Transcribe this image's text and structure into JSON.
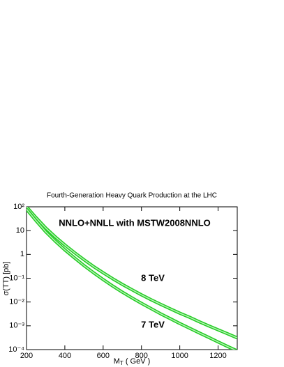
{
  "chart_data": {
    "type": "line",
    "title": "Fourth-Generation Heavy Quark Production at the LHC",
    "y_label": "σ(TT) [pb]",
    "x_label": {
      "main": "M",
      "sub": "T",
      "rest": " ( GeV )"
    },
    "annotations": [
      "NNLO+NNLL with MSTW2008NNLO",
      "8 TeV",
      "7 TeV"
    ],
    "x": [
      200,
      250,
      300,
      350,
      400,
      450,
      500,
      550,
      600,
      650,
      700,
      750,
      800,
      850,
      900,
      950,
      1000,
      1050,
      1100,
      1150,
      1200,
      1250,
      1300
    ],
    "series": [
      {
        "name": "8 TeV",
        "color": "#22cc22",
        "values": [
          100,
          35,
          13,
          5.5,
          2.5,
          1.2,
          0.6,
          0.31,
          0.17,
          0.095,
          0.055,
          0.033,
          0.02,
          0.0125,
          0.008,
          0.0052,
          0.0034,
          0.0023,
          0.0015,
          0.001,
          0.00068,
          0.00046,
          0.00031
        ]
      },
      {
        "name": "7 TeV",
        "color": "#22cc22",
        "values": [
          80,
          26,
          9,
          3.6,
          1.55,
          0.72,
          0.34,
          0.17,
          0.088,
          0.047,
          0.026,
          0.015,
          0.0088,
          0.0053,
          0.0032,
          0.002,
          0.00125,
          0.0008,
          0.00051,
          0.00033,
          0.00021,
          0.000135,
          8.8e-05
        ]
      }
    ],
    "xlim": [
      200,
      1300
    ],
    "xticks": [
      200,
      400,
      600,
      800,
      1000,
      1200
    ],
    "ylim": [
      0.0001,
      100
    ],
    "log_y": true,
    "yticks": [
      {
        "value": 0.0001,
        "label": "10⁻⁴"
      },
      {
        "value": 0.001,
        "label": "10⁻³"
      },
      {
        "value": 0.01,
        "label": "10⁻²"
      },
      {
        "value": 0.1,
        "label": "10⁻¹"
      },
      1,
      10,
      {
        "value": 100,
        "label": "10²"
      }
    ]
  }
}
